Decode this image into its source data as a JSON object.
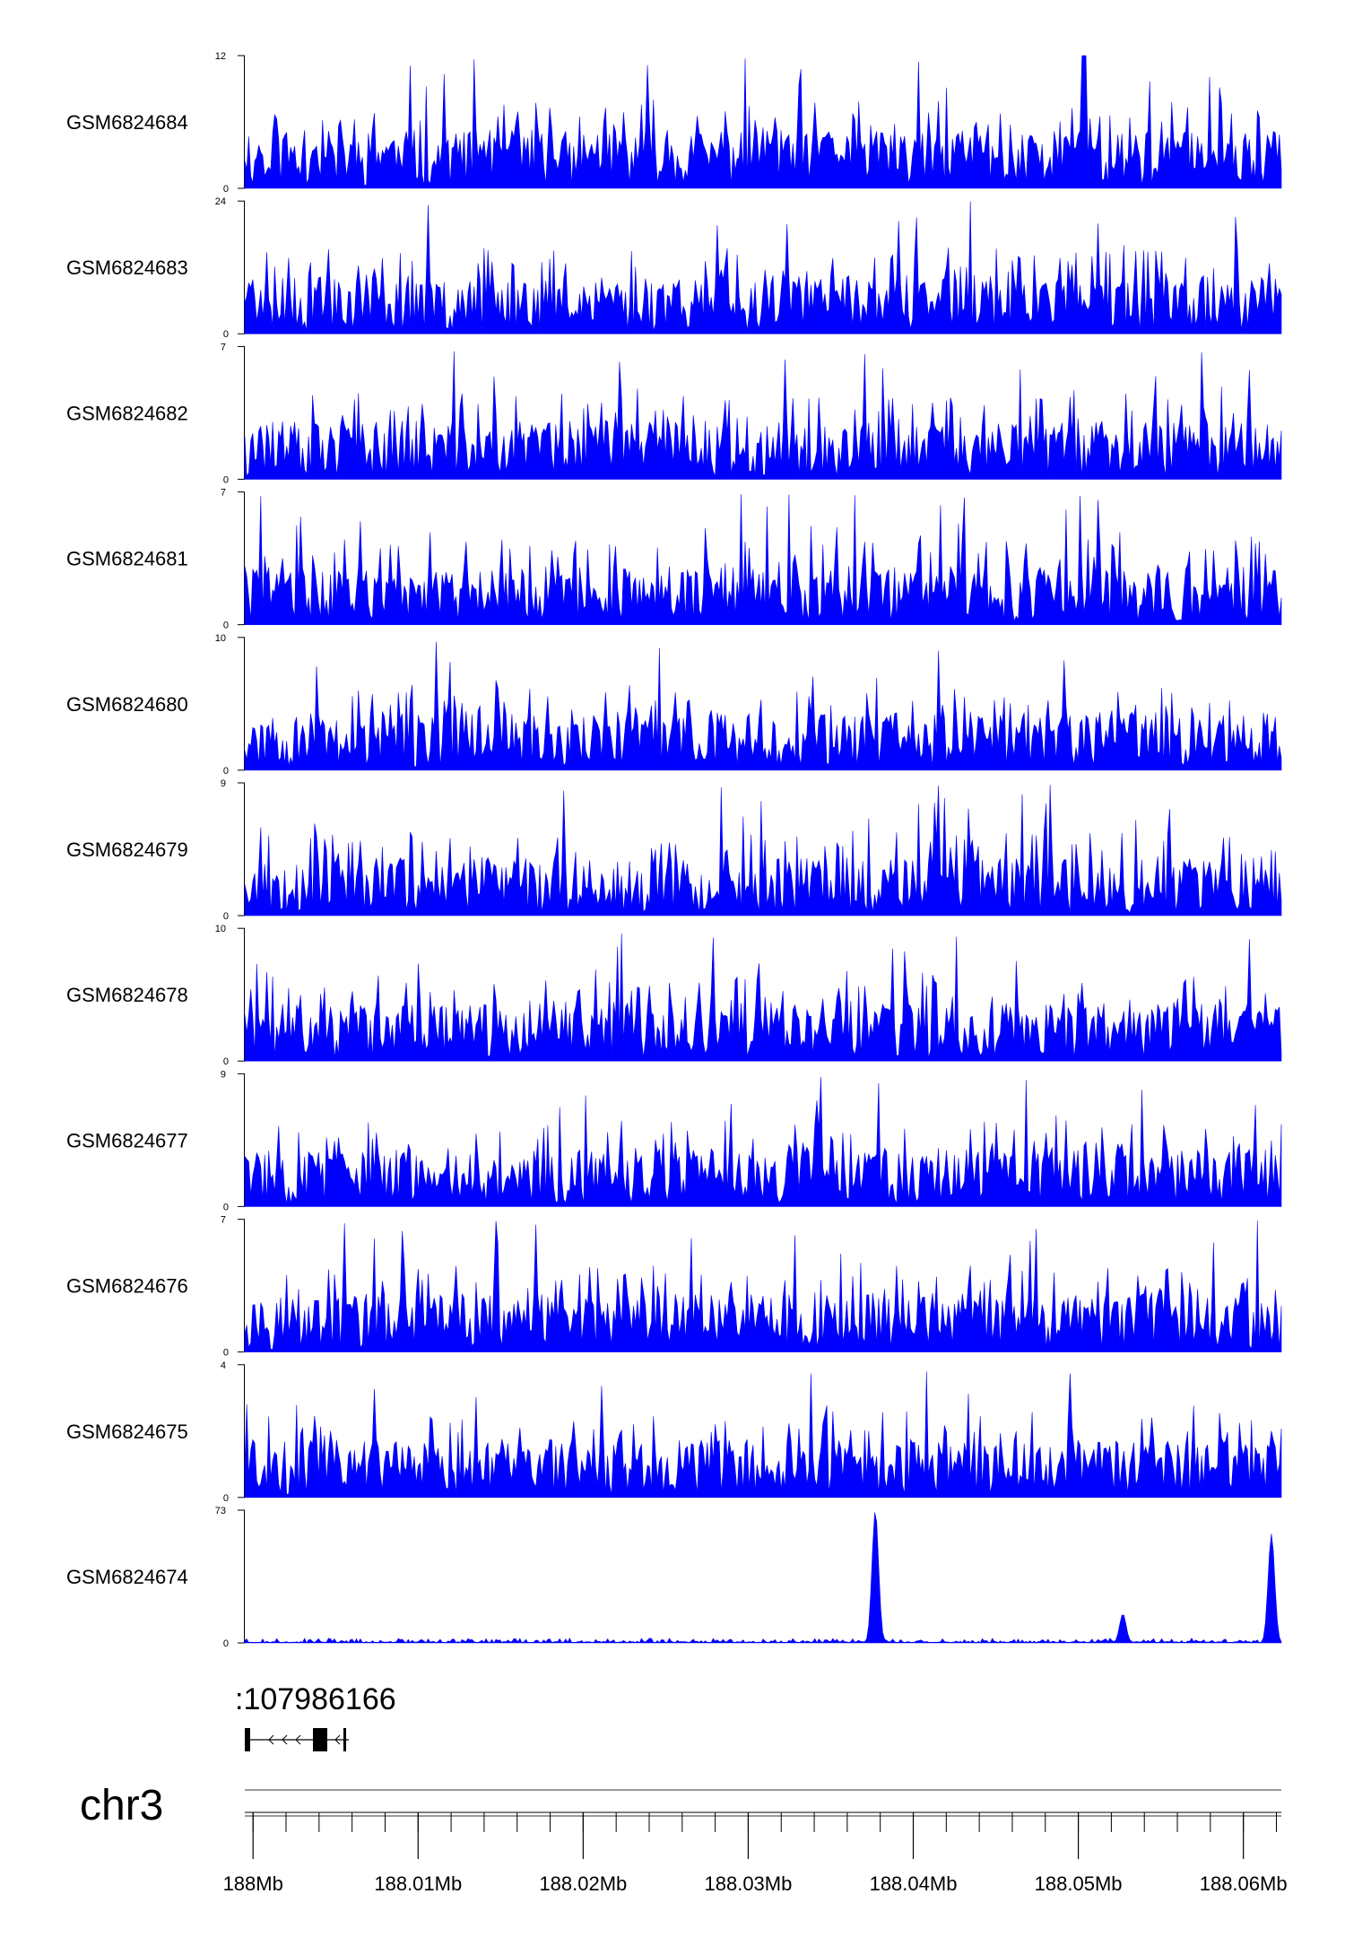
{
  "chart_data": {
    "type": "area",
    "title": "",
    "genome_region": {
      "chrom": "chr3",
      "start_mb": 187.9995,
      "end_mb": 188.0623
    },
    "x_ticks": [
      {
        "pos_mb": 188.0,
        "label": "188Mb"
      },
      {
        "pos_mb": 188.01,
        "label": "188.01Mb"
      },
      {
        "pos_mb": 188.02,
        "label": "188.02Mb"
      },
      {
        "pos_mb": 188.03,
        "label": "188.03Mb"
      },
      {
        "pos_mb": 188.04,
        "label": "188.04Mb"
      },
      {
        "pos_mb": 188.05,
        "label": "188.05Mb"
      },
      {
        "pos_mb": 188.06,
        "label": "188.06Mb"
      }
    ],
    "minor_tick_step_mb": 0.002,
    "tracks": [
      {
        "name": "GSM6824684",
        "ymax": 12,
        "ymin": 0,
        "peaks": [],
        "seed": 11
      },
      {
        "name": "GSM6824683",
        "ymax": 24,
        "ymin": 0,
        "peaks": [],
        "seed": 23
      },
      {
        "name": "GSM6824682",
        "ymax": 7,
        "ymin": 0,
        "peaks": [],
        "seed": 37
      },
      {
        "name": "GSM6824681",
        "ymax": 7,
        "ymin": 0,
        "peaks": [],
        "seed": 41
      },
      {
        "name": "GSM6824680",
        "ymax": 10,
        "ymin": 0,
        "peaks": [],
        "seed": 53
      },
      {
        "name": "GSM6824679",
        "ymax": 9,
        "ymin": 0,
        "peaks": [],
        "seed": 67
      },
      {
        "name": "GSM6824678",
        "ymax": 10,
        "ymin": 0,
        "peaks": [],
        "seed": 71
      },
      {
        "name": "GSM6824677",
        "ymax": 9,
        "ymin": 0,
        "peaks": [],
        "seed": 83
      },
      {
        "name": "GSM6824676",
        "ymax": 7,
        "ymin": 0,
        "peaks": [],
        "seed": 97
      },
      {
        "name": "GSM6824675",
        "ymax": 4,
        "ymin": 0,
        "peaks": [],
        "seed": 101
      },
      {
        "name": "GSM6824674",
        "ymax": 73,
        "ymin": 0,
        "peaks": [
          {
            "pos_mb": 188.0377,
            "value": 73
          },
          {
            "pos_mb": 188.0527,
            "value": 16
          },
          {
            "pos_mb": 188.0617,
            "value": 60
          }
        ],
        "seed": 113
      }
    ],
    "gene": {
      "label": "107986166",
      "label_prefix_clip": ":",
      "strand": "-",
      "exons_mb": [
        [
          187.9995,
          188.0
        ],
        [
          188.004,
          188.0048
        ],
        [
          188.0058,
          188.006
        ]
      ],
      "intron_span_mb": [
        187.9995,
        188.0062
      ]
    },
    "chromosome_label": "chr3",
    "colors": {
      "signal": "#0000ff",
      "axis": "#000000",
      "gene": "#000000",
      "chrom_line": "#999999"
    }
  }
}
